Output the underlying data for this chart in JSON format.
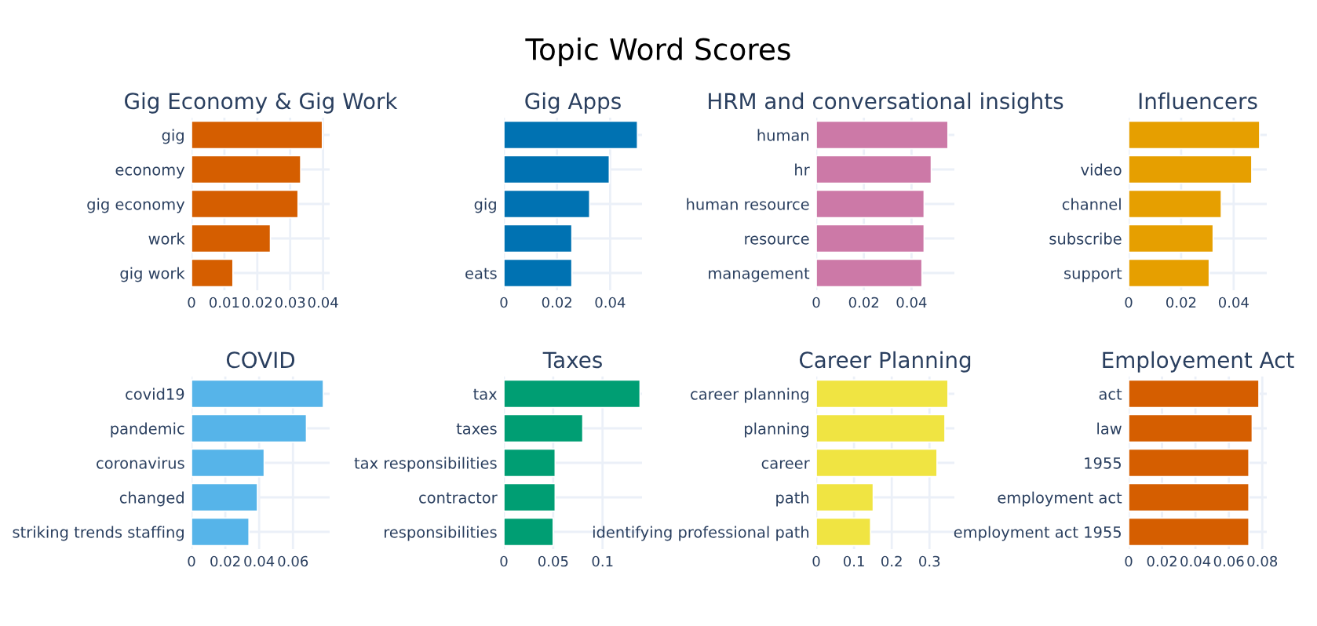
{
  "chart_data": [
    {
      "type": "bar",
      "orientation": "horizontal",
      "annotations": [
        "Topic Word Scores"
      ],
      "title": "Gig Economy & Gig Work",
      "categories": [
        "gig",
        "economy",
        "gig economy",
        "work",
        "gig work"
      ],
      "values": [
        0.0398,
        0.0332,
        0.0324,
        0.024,
        0.0126
      ],
      "color": "#d55e00",
      "xlim": [
        0,
        0.042
      ],
      "xticks": [
        0,
        0.01,
        0.02,
        0.03,
        0.04
      ],
      "grid": true
    },
    {
      "type": "bar",
      "orientation": "horizontal",
      "title": "Gig Apps",
      "categories": [
        null,
        null,
        "gig",
        null,
        "eats"
      ],
      "values": [
        0.0503,
        0.0397,
        0.0323,
        0.0256,
        0.0256
      ],
      "color": "#0072b2",
      "xlim": [
        0,
        0.052
      ],
      "xticks": [
        0,
        0.02,
        0.04
      ],
      "grid": true
    },
    {
      "type": "bar",
      "orientation": "horizontal",
      "title": "HRM and conversational insights",
      "categories": [
        "human",
        "hr",
        "human resource",
        "resource",
        "management"
      ],
      "values": [
        0.0553,
        0.0483,
        0.0453,
        0.0453,
        0.0444
      ],
      "color": "#cc79a7",
      "xlim": [
        0,
        0.058
      ],
      "xticks": [
        0,
        0.02,
        0.04
      ],
      "grid": true
    },
    {
      "type": "bar",
      "orientation": "horizontal",
      "title": "Influencers",
      "categories": [
        null,
        "video",
        "channel",
        "subscribe",
        "support"
      ],
      "values": [
        0.0499,
        0.0469,
        0.0353,
        0.0322,
        0.0307
      ],
      "color": "#e69f00",
      "xlim": [
        0,
        0.0526
      ],
      "xticks": [
        0,
        0.02,
        0.04
      ],
      "grid": true
    },
    {
      "type": "bar",
      "orientation": "horizontal",
      "title": "COVID",
      "categories": [
        "covid19",
        "pandemic",
        "coronavirus",
        "changed",
        "striking trends staffing"
      ],
      "values": [
        0.078,
        0.068,
        0.043,
        0.039,
        0.034
      ],
      "color": "#56b4e9",
      "xlim": [
        0,
        0.0817
      ],
      "xticks": [
        0,
        0.02,
        0.04,
        0.06
      ],
      "grid": true
    },
    {
      "type": "bar",
      "orientation": "horizontal",
      "title": "Taxes",
      "categories": [
        "tax",
        "taxes",
        "tax responsibilities",
        "contractor",
        "responsibilities"
      ],
      "values": [
        0.138,
        0.08,
        0.052,
        0.052,
        0.05
      ],
      "color": "#009e73",
      "xlim": [
        0,
        0.14
      ],
      "xticks": [
        0,
        0.05,
        0.1
      ],
      "grid": true
    },
    {
      "type": "bar",
      "orientation": "horizontal",
      "title": "Career Planning",
      "categories": [
        "career planning",
        "planning",
        "career",
        "path",
        "identifying professional path"
      ],
      "values": [
        0.349,
        0.341,
        0.32,
        0.151,
        0.144
      ],
      "color": "#f0e442",
      "xlim": [
        0,
        0.366
      ],
      "xticks": [
        0,
        0.1,
        0.2,
        0.3
      ],
      "grid": true
    },
    {
      "type": "bar",
      "orientation": "horizontal",
      "title": "Employement Act",
      "categories": [
        "act",
        "law",
        "1955",
        "employment act",
        "employment act 1955"
      ],
      "values": [
        0.078,
        0.074,
        0.072,
        0.072,
        0.072
      ],
      "color": "#d55e00",
      "xlim": [
        0,
        0.0827
      ],
      "xticks": [
        0,
        0.02,
        0.04,
        0.06,
        0.08
      ],
      "grid": true
    }
  ]
}
